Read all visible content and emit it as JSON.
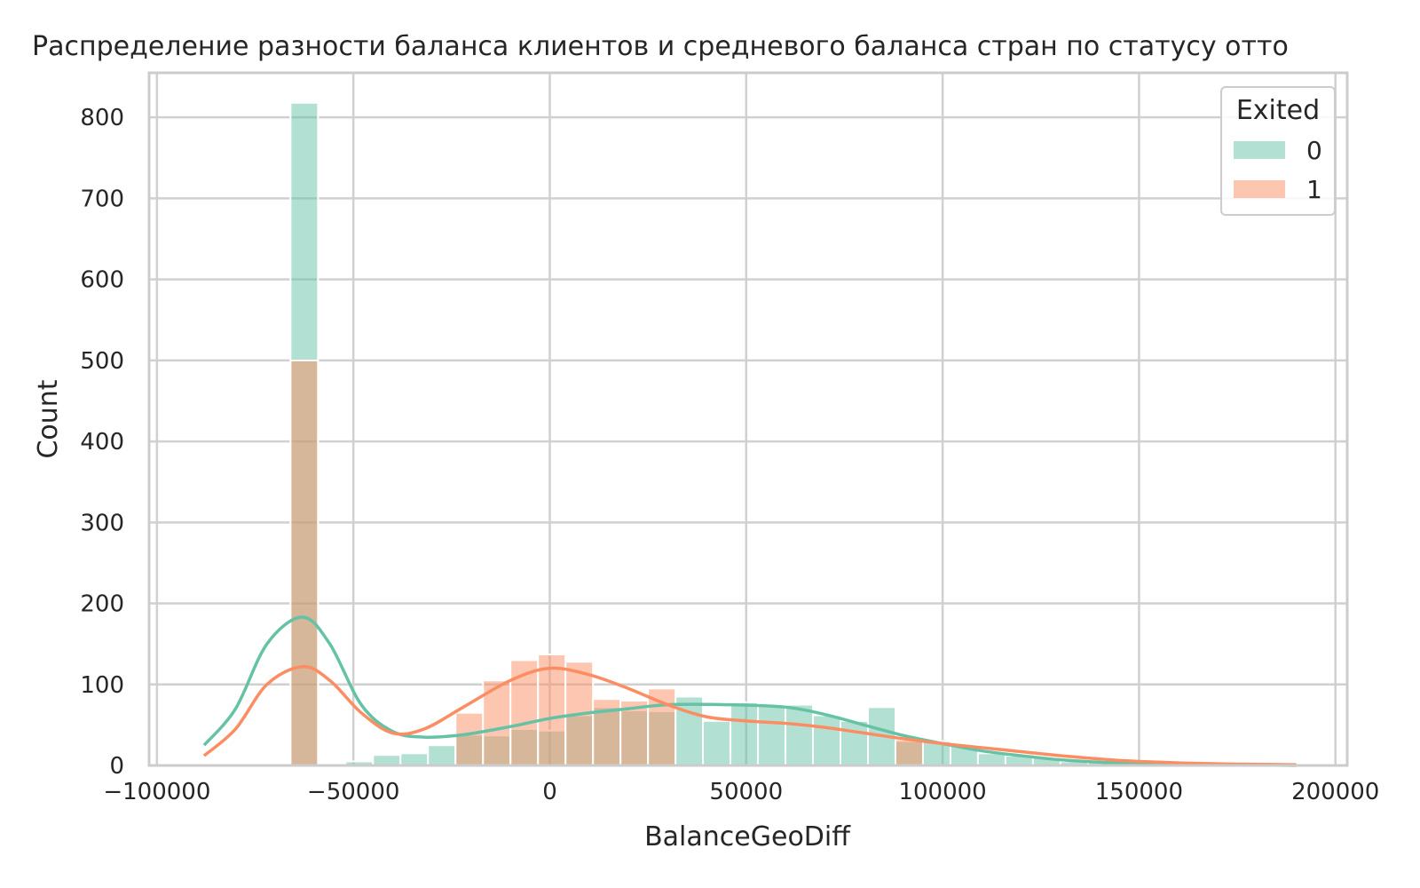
{
  "chart_data": {
    "type": "bar",
    "title": "Распределение разности баланса клиентов и средневого баланса стран по статусу отто",
    "xlabel": "BalanceGeoDiff",
    "ylabel": "Count",
    "xlim": [
      -102000,
      203000
    ],
    "ylim": [
      0,
      855
    ],
    "xticks": [
      -100000,
      -50000,
      0,
      50000,
      100000,
      150000,
      200000
    ],
    "xtick_labels": [
      "−100000",
      "−50000",
      "0",
      "50000",
      "100000",
      "150000",
      "200000"
    ],
    "yticks": [
      0,
      100,
      200,
      300,
      400,
      500,
      600,
      700,
      800
    ],
    "ytick_labels": [
      "0",
      "100",
      "200",
      "300",
      "400",
      "500",
      "600",
      "700",
      "800"
    ],
    "grid": true,
    "legend": {
      "title": "Exited",
      "placement": "top-right"
    },
    "bins": {
      "edges": [
        -66000,
        -59000,
        -52000,
        -45000,
        -38000,
        -31000,
        -24000,
        -17000,
        -10000,
        -3000,
        4000,
        11000,
        18000,
        25000,
        32000,
        39000,
        46000,
        53000,
        60000,
        67000,
        74000,
        81000,
        88000,
        95000,
        102000,
        109000,
        116000,
        123000,
        130000,
        137000,
        144000,
        151000,
        158000,
        165000,
        172000,
        179000,
        186000
      ]
    },
    "series": [
      {
        "name": "0",
        "color": "#66c2a5",
        "values": [
          818,
          0,
          5,
          13,
          15,
          25,
          38,
          37,
          45,
          43,
          62,
          72,
          68,
          67,
          85,
          55,
          78,
          75,
          75,
          62,
          55,
          72,
          30,
          30,
          25,
          15,
          12,
          10,
          5,
          4,
          3,
          2,
          2,
          1,
          1,
          1
        ],
        "kde": [
          [
            -88000,
            25
          ],
          [
            -80000,
            70
          ],
          [
            -72000,
            150
          ],
          [
            -63000,
            183
          ],
          [
            -56000,
            150
          ],
          [
            -48000,
            75
          ],
          [
            -40000,
            42
          ],
          [
            -32000,
            35
          ],
          [
            -22000,
            38
          ],
          [
            -10000,
            48
          ],
          [
            0,
            58
          ],
          [
            10000,
            65
          ],
          [
            20000,
            70
          ],
          [
            30000,
            75
          ],
          [
            45000,
            75
          ],
          [
            60000,
            72
          ],
          [
            70000,
            63
          ],
          [
            80000,
            50
          ],
          [
            90000,
            37
          ],
          [
            100000,
            27
          ],
          [
            110000,
            18
          ],
          [
            120000,
            12
          ],
          [
            130000,
            7
          ],
          [
            140000,
            4
          ],
          [
            150000,
            2
          ],
          [
            170000,
            1
          ],
          [
            190000,
            0
          ]
        ]
      },
      {
        "name": "1",
        "color": "#fc8d62",
        "values": [
          500,
          0,
          0,
          0,
          0,
          0,
          65,
          105,
          130,
          137,
          128,
          82,
          80,
          95,
          0,
          0,
          0,
          0,
          0,
          0,
          0,
          0,
          32,
          0,
          0,
          0,
          0,
          0,
          0,
          0,
          0,
          0,
          0,
          0,
          0,
          0
        ],
        "kde": [
          [
            -88000,
            12
          ],
          [
            -80000,
            45
          ],
          [
            -72000,
            100
          ],
          [
            -63000,
            122
          ],
          [
            -56000,
            105
          ],
          [
            -48000,
            65
          ],
          [
            -40000,
            40
          ],
          [
            -32000,
            45
          ],
          [
            -22000,
            72
          ],
          [
            -10000,
            105
          ],
          [
            0,
            120
          ],
          [
            10000,
            112
          ],
          [
            20000,
            95
          ],
          [
            30000,
            75
          ],
          [
            40000,
            60
          ],
          [
            50000,
            55
          ],
          [
            60000,
            52
          ],
          [
            70000,
            47
          ],
          [
            80000,
            40
          ],
          [
            90000,
            33
          ],
          [
            100000,
            27
          ],
          [
            110000,
            22
          ],
          [
            120000,
            17
          ],
          [
            130000,
            12
          ],
          [
            140000,
            8
          ],
          [
            150000,
            5
          ],
          [
            170000,
            2
          ],
          [
            190000,
            1
          ]
        ]
      }
    ]
  }
}
